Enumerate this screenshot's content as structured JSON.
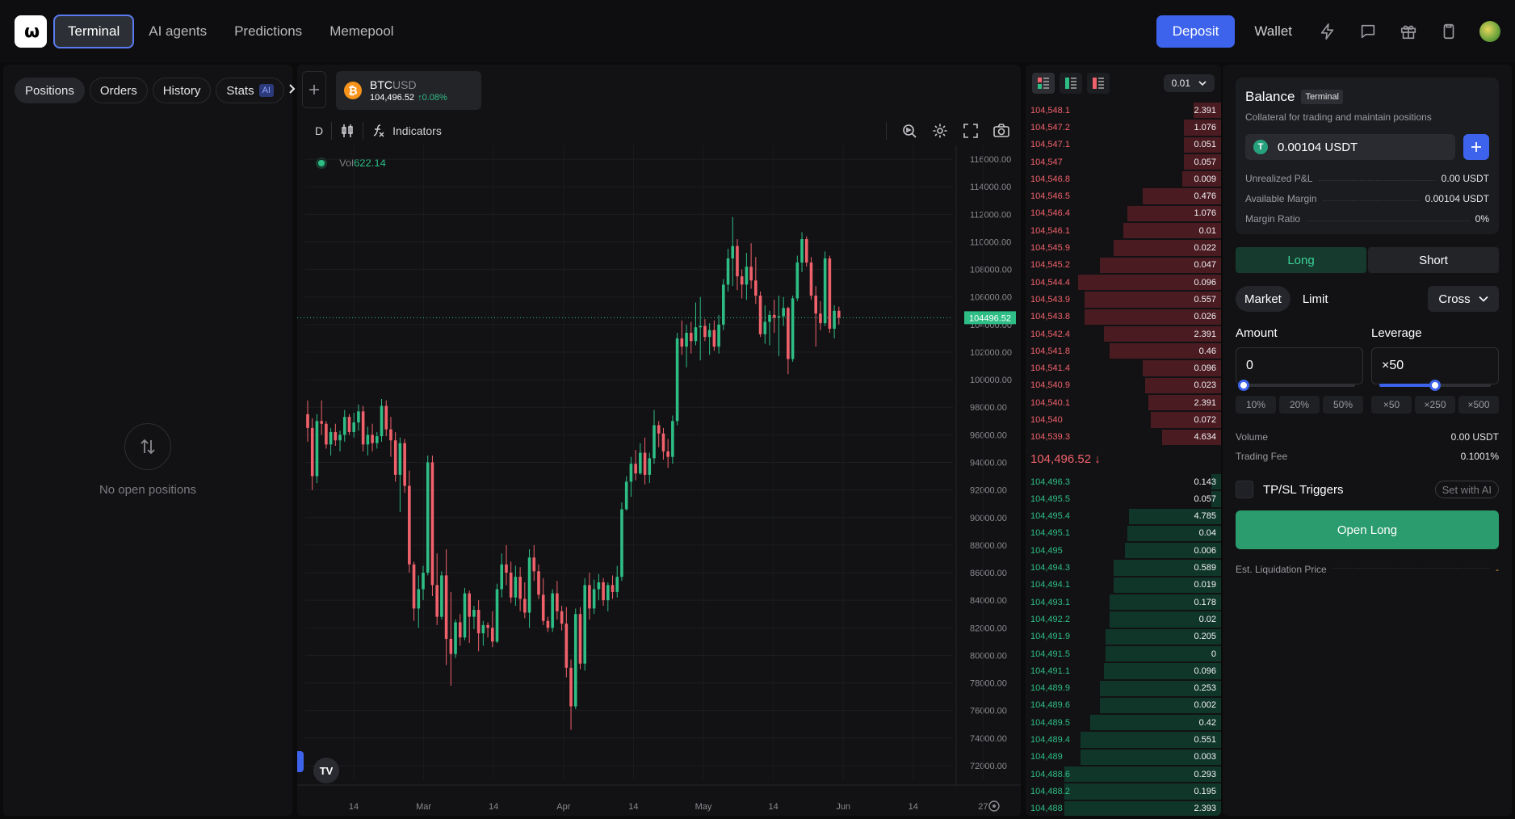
{
  "nav": {
    "logo_text": "ω",
    "tabs": [
      {
        "label": "Terminal"
      },
      {
        "label": "AI agents"
      },
      {
        "label": "Predictions"
      },
      {
        "label": "Memepool"
      }
    ],
    "deposit_label": "Deposit",
    "wallet_label": "Wallet",
    "icons": [
      "lightning-icon",
      "chat-icon",
      "gift-icon",
      "clipboard-icon"
    ]
  },
  "left": {
    "tabs": [
      {
        "label": "Positions"
      },
      {
        "label": "Orders"
      },
      {
        "label": "History"
      },
      {
        "label": "Stats"
      }
    ],
    "stats_badge": "AI",
    "empty_text": "No open positions"
  },
  "chart": {
    "symbol_base": "BTC",
    "symbol_quote": "USD",
    "price": "104,496.52",
    "change": "↑0.08%",
    "interval": "D",
    "indicators_label": "Indicators",
    "vol_label": "Vol",
    "vol_value": "622.14",
    "tv_logo": "TV",
    "price_label": "104496.52",
    "colors": {
      "up": "#2ebd85",
      "down": "#f0616b"
    }
  },
  "chart_data": {
    "type": "candlestick",
    "y_ticks": [
      "116000.00",
      "114000.00",
      "112000.00",
      "110000.00",
      "108000.00",
      "106000.00",
      "104000.00",
      "102000.00",
      "100000.00",
      "98000.00",
      "96000.00",
      "94000.00",
      "92000.00",
      "90000.00",
      "88000.00",
      "86000.00",
      "84000.00",
      "82000.00",
      "80000.00",
      "78000.00",
      "76000.00",
      "74000.00",
      "72000.00"
    ],
    "x_ticks": [
      "14",
      "Mar",
      "14",
      "Apr",
      "14",
      "May",
      "14",
      "Jun",
      "14",
      "27"
    ],
    "ylim": [
      71000,
      117000
    ],
    "last_price": 104496.52,
    "candles": [
      [
        97500,
        98500,
        95500,
        96500
      ],
      [
        96500,
        97200,
        92000,
        93000
      ],
      [
        93000,
        97500,
        92500,
        97000
      ],
      [
        97000,
        98500,
        96000,
        96800
      ],
      [
        96800,
        97000,
        95000,
        95300
      ],
      [
        95300,
        96500,
        94500,
        96200
      ],
      [
        96200,
        96800,
        95200,
        95600
      ],
      [
        95600,
        96300,
        94800,
        96000
      ],
      [
        96000,
        97800,
        95500,
        97300
      ],
      [
        97300,
        97500,
        96000,
        96200
      ],
      [
        96200,
        97600,
        95800,
        96900
      ],
      [
        96900,
        98200,
        96300,
        97700
      ],
      [
        97700,
        98100,
        94800,
        95300
      ],
      [
        95300,
        96600,
        94500,
        96000
      ],
      [
        96000,
        96800,
        94800,
        95400
      ],
      [
        95400,
        96200,
        95000,
        95900
      ],
      [
        95900,
        98600,
        95500,
        98100
      ],
      [
        98100,
        98500,
        95900,
        96400
      ],
      [
        96400,
        97300,
        94400,
        95600
      ],
      [
        95600,
        96200,
        92600,
        93100
      ],
      [
        93100,
        95800,
        90400,
        95400
      ],
      [
        95400,
        95700,
        91800,
        92300
      ],
      [
        92300,
        93400,
        86000,
        86600
      ],
      [
        86600,
        86800,
        82500,
        83400
      ],
      [
        83400,
        85800,
        82000,
        84800
      ],
      [
        84800,
        86500,
        84000,
        86000
      ],
      [
        86000,
        94500,
        85800,
        94000
      ],
      [
        94000,
        94500,
        84300,
        85100
      ],
      [
        85100,
        87400,
        82200,
        82800
      ],
      [
        82800,
        86100,
        82600,
        85800
      ],
      [
        85800,
        87700,
        79300,
        81200
      ],
      [
        81200,
        84600,
        77800,
        80100
      ],
      [
        80100,
        82600,
        79800,
        82400
      ],
      [
        82400,
        83000,
        80700,
        81300
      ],
      [
        81300,
        84900,
        81100,
        84500
      ],
      [
        84500,
        84700,
        80900,
        82800
      ],
      [
        82800,
        83600,
        81900,
        83300
      ],
      [
        83300,
        84000,
        80300,
        81600
      ],
      [
        81600,
        82500,
        80700,
        82200
      ],
      [
        82200,
        82400,
        81300,
        82000
      ],
      [
        82000,
        83200,
        80600,
        81000
      ],
      [
        81000,
        85200,
        80900,
        84800
      ],
      [
        84800,
        87400,
        84200,
        86600
      ],
      [
        86600,
        88000,
        85100,
        86000
      ],
      [
        86000,
        86800,
        83800,
        84200
      ],
      [
        84200,
        86500,
        83600,
        85700
      ],
      [
        85700,
        86400,
        83200,
        84100
      ],
      [
        84100,
        85300,
        82700,
        83100
      ],
      [
        83100,
        87700,
        82000,
        87100
      ],
      [
        87100,
        88000,
        85400,
        86100
      ],
      [
        86100,
        86600,
        84100,
        84400
      ],
      [
        84400,
        85600,
        82200,
        82500
      ],
      [
        82500,
        82800,
        81700,
        82000
      ],
      [
        82000,
        84800,
        81700,
        84500
      ],
      [
        84500,
        85400,
        82600,
        83200
      ],
      [
        83200,
        83600,
        81800,
        82300
      ],
      [
        82300,
        83500,
        78400,
        79100
      ],
      [
        79100,
        79700,
        74600,
        76300
      ],
      [
        76300,
        83400,
        76100,
        83000
      ],
      [
        83000,
        83500,
        79000,
        79400
      ],
      [
        79400,
        85600,
        78900,
        85100
      ],
      [
        85100,
        86000,
        82600,
        83400
      ],
      [
        83400,
        85500,
        83000,
        84800
      ],
      [
        84800,
        85900,
        84000,
        85300
      ],
      [
        85300,
        85600,
        83600,
        84000
      ],
      [
        84000,
        85300,
        83200,
        85100
      ],
      [
        85100,
        85800,
        84100,
        84600
      ],
      [
        84600,
        86500,
        84200,
        85700
      ],
      [
        85700,
        91100,
        85400,
        90600
      ],
      [
        90600,
        93000,
        90500,
        92600
      ],
      [
        92600,
        94400,
        91500,
        93900
      ],
      [
        93900,
        94900,
        92700,
        93200
      ],
      [
        93200,
        95400,
        93100,
        94700
      ],
      [
        94700,
        95800,
        92400,
        93100
      ],
      [
        93100,
        94700,
        92500,
        94300
      ],
      [
        94300,
        97800,
        93900,
        96700
      ],
      [
        96700,
        97000,
        95100,
        96100
      ],
      [
        96100,
        96500,
        94200,
        94800
      ],
      [
        94800,
        95700,
        93600,
        94400
      ],
      [
        94400,
        97400,
        93900,
        97000
      ],
      [
        97000,
        103400,
        96700,
        103000
      ],
      [
        103000,
        104300,
        101800,
        102400
      ],
      [
        102400,
        104000,
        100900,
        103400
      ],
      [
        103400,
        104200,
        101900,
        102800
      ],
      [
        102800,
        105600,
        102500,
        103800
      ],
      [
        103800,
        106000,
        101400,
        103900
      ],
      [
        103900,
        104400,
        102800,
        103100
      ],
      [
        103100,
        104100,
        101800,
        103600
      ],
      [
        103600,
        104300,
        102100,
        102400
      ],
      [
        102400,
        104700,
        101900,
        104000
      ],
      [
        104000,
        107300,
        103600,
        106900
      ],
      [
        106900,
        109500,
        106400,
        108800
      ],
      [
        108800,
        111800,
        106800,
        109700
      ],
      [
        109700,
        110200,
        106500,
        107500
      ],
      [
        107500,
        108000,
        105900,
        106900
      ],
      [
        106900,
        109200,
        105800,
        108200
      ],
      [
        108200,
        109900,
        106600,
        107200
      ],
      [
        107200,
        108900,
        105500,
        106100
      ],
      [
        106100,
        106400,
        103100,
        103300
      ],
      [
        103300,
        105400,
        102600,
        104200
      ],
      [
        104200,
        105000,
        102500,
        104700
      ],
      [
        104700,
        105800,
        103400,
        104500
      ],
      [
        104500,
        106100,
        101700,
        104600
      ],
      [
        104600,
        106000,
        103900,
        105200
      ],
      [
        105200,
        105300,
        100400,
        101500
      ],
      [
        101500,
        106100,
        101300,
        105900
      ],
      [
        105900,
        109000,
        105700,
        108500
      ],
      [
        108500,
        110700,
        107800,
        110200
      ],
      [
        110200,
        110400,
        108200,
        108500
      ],
      [
        108500,
        108900,
        105800,
        106100
      ],
      [
        106100,
        106800,
        102400,
        104800
      ],
      [
        104800,
        105700,
        103600,
        104100
      ],
      [
        104100,
        109300,
        103900,
        108800
      ],
      [
        108800,
        109000,
        103400,
        103700
      ],
      [
        103700,
        105400,
        103000,
        105000
      ],
      [
        105000,
        105300,
        104000,
        104500
      ]
    ]
  },
  "orderbook": {
    "step": "0.01",
    "mid_price": "104,496.52 ↓",
    "asks": [
      {
        "p": "104,548.1",
        "s": "2.391",
        "d": 0.14
      },
      {
        "p": "104,547.2",
        "s": "1.076",
        "d": 0.19
      },
      {
        "p": "104,547.1",
        "s": "0.051",
        "d": 0.19
      },
      {
        "p": "104,547",
        "s": "0.057",
        "d": 0.19
      },
      {
        "p": "104,546.8",
        "s": "0.009",
        "d": 0.2
      },
      {
        "p": "104,546.5",
        "s": "0.476",
        "d": 0.4
      },
      {
        "p": "104,546.4",
        "s": "1.076",
        "d": 0.48
      },
      {
        "p": "104,546.1",
        "s": "0.01",
        "d": 0.5
      },
      {
        "p": "104,545.9",
        "s": "0.022",
        "d": 0.55
      },
      {
        "p": "104,545.2",
        "s": "0.047",
        "d": 0.62
      },
      {
        "p": "104,544.4",
        "s": "0.096",
        "d": 0.73
      },
      {
        "p": "104,543.9",
        "s": "0.557",
        "d": 0.7
      },
      {
        "p": "104,543.8",
        "s": "0.026",
        "d": 0.7
      },
      {
        "p": "104,542.4",
        "s": "2.391",
        "d": 0.6
      },
      {
        "p": "104,541.8",
        "s": "0.46",
        "d": 0.57
      },
      {
        "p": "104,541.4",
        "s": "0.096",
        "d": 0.4
      },
      {
        "p": "104,540.9",
        "s": "0.023",
        "d": 0.39
      },
      {
        "p": "104,540.1",
        "s": "2.391",
        "d": 0.37
      },
      {
        "p": "104,540",
        "s": "0.072",
        "d": 0.36
      },
      {
        "p": "104,539.3",
        "s": "4.634",
        "d": 0.3
      }
    ],
    "bids": [
      {
        "p": "104,496.3",
        "s": "0.143",
        "d": 0.05
      },
      {
        "p": "104,495.5",
        "s": "0.057",
        "d": 0.05
      },
      {
        "p": "104,495.4",
        "s": "4.785",
        "d": 0.47
      },
      {
        "p": "104,495.1",
        "s": "0.04",
        "d": 0.48
      },
      {
        "p": "104,495",
        "s": "0.006",
        "d": 0.49
      },
      {
        "p": "104,494.3",
        "s": "0.589",
        "d": 0.55
      },
      {
        "p": "104,494.1",
        "s": "0.019",
        "d": 0.55
      },
      {
        "p": "104,493.1",
        "s": "0.178",
        "d": 0.57
      },
      {
        "p": "104,492.2",
        "s": "0.02",
        "d": 0.57
      },
      {
        "p": "104,491.9",
        "s": "0.205",
        "d": 0.59
      },
      {
        "p": "104,491.5",
        "s": "0",
        "d": 0.59
      },
      {
        "p": "104,491.1",
        "s": "0.096",
        "d": 0.6
      },
      {
        "p": "104,489.9",
        "s": "0.253",
        "d": 0.62
      },
      {
        "p": "104,489.6",
        "s": "0.002",
        "d": 0.62
      },
      {
        "p": "104,489.5",
        "s": "0.42",
        "d": 0.67
      },
      {
        "p": "104,489.4",
        "s": "0.551",
        "d": 0.72
      },
      {
        "p": "104,489",
        "s": "0.003",
        "d": 0.72
      },
      {
        "p": "104,488.6",
        "s": "0.293",
        "d": 0.8
      },
      {
        "p": "104,488.2",
        "s": "0.195",
        "d": 0.8
      },
      {
        "p": "104,488",
        "s": "2.393",
        "d": 0.8
      }
    ]
  },
  "trade": {
    "balance_title": "Balance",
    "balance_badge": "Terminal",
    "balance_sub": "Collateral for trading and maintain positions",
    "balance_value": "0.00104 USDT",
    "usdt_glyph": "T",
    "rows": [
      {
        "k": "Unrealized P&L",
        "v": "0.00 USDT"
      },
      {
        "k": "Available Margin",
        "v": "0.00104 USDT"
      },
      {
        "k": "Margin Ratio",
        "v": "0%"
      }
    ],
    "long_label": "Long",
    "short_label": "Short",
    "market_label": "Market",
    "limit_label": "Limit",
    "margin_mode": "Cross",
    "amount_label": "Amount",
    "amount_value": "0",
    "amount_fraction": 0,
    "leverage_label": "Leverage",
    "leverage_value": "×50",
    "leverage_fraction": 0.5,
    "amount_chips": [
      "10%",
      "20%",
      "50%"
    ],
    "leverage_chips": [
      "×50",
      "×250",
      "×500"
    ],
    "volume_label": "Volume",
    "volume_value": "0.00 USDT",
    "fee_label": "Trading Fee",
    "fee_value": "0.1001%",
    "tpsl_label": "TP/SL Triggers",
    "set_ai_label": "Set with AI",
    "open_label": "Open Long",
    "liq_label": "Est. Liquidation Price",
    "liq_value": "-"
  }
}
